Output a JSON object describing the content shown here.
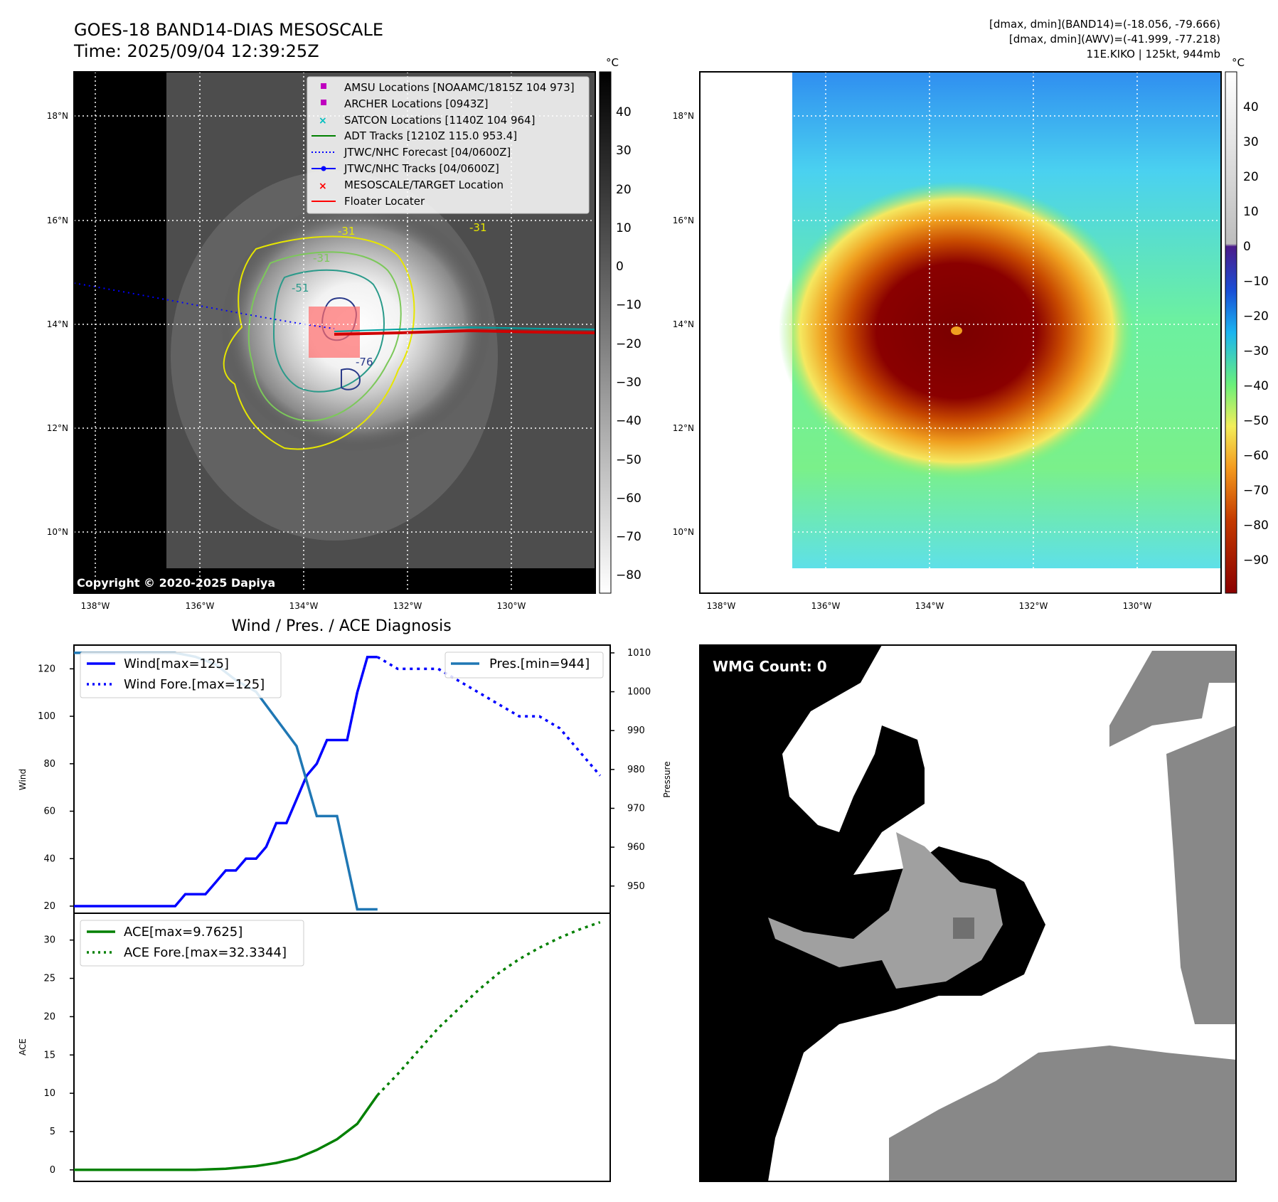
{
  "header": {
    "title_line1": "GOES-18 BAND14-DIAS MESOSCALE",
    "title_line2": "Time: 2025/09/04 12:39:25Z",
    "right_line1": "[dmax, dmin](BAND14)=(-18.056, -79.666)",
    "right_line2": "[dmax, dmin](AWV)=(-41.999, -77.218)",
    "right_line3": "11E.KIKO | 125kt, 944mb"
  },
  "maps": {
    "lat_labels": [
      "18°N",
      "16°N",
      "14°N",
      "12°N",
      "10°N"
    ],
    "lon_labels": [
      "138°W",
      "136°W",
      "134°W",
      "132°W",
      "130°W"
    ],
    "copyright": "Copyright © 2020-2025 Dapiya",
    "unit": "°C",
    "left_colorbar_ticks": [
      "40",
      "30",
      "20",
      "10",
      "0",
      "−10",
      "−20",
      "−30",
      "−40",
      "−50",
      "−60",
      "−70",
      "−80"
    ],
    "right_colorbar_ticks": [
      "40",
      "30",
      "20",
      "10",
      "0",
      "−10",
      "−20",
      "−30",
      "−40",
      "−50",
      "−60",
      "−70",
      "−80",
      "−90"
    ],
    "contour_labels": [
      "-31",
      "-31",
      "-51",
      "-76",
      "-31"
    ],
    "legend": [
      {
        "label": "AMSU Locations [NOAAMC/1815Z 104 973]",
        "color": "#bf00bf",
        "marker": "square"
      },
      {
        "label": "ARCHER Locations [0943Z]",
        "color": "#bf00bf",
        "marker": "square"
      },
      {
        "label": "SATCON Locations [1140Z 104 964]",
        "color": "#00bfbf",
        "marker": "x"
      },
      {
        "label": "ADT Tracks [1210Z 115.0 953.4]",
        "color": "#008000",
        "marker": "line"
      },
      {
        "label": "JTWC/NHC Forecast [04/0600Z]",
        "color": "#0000ff",
        "marker": "dotted"
      },
      {
        "label": "JTWC/NHC Tracks [04/0600Z]",
        "color": "#0000ff",
        "marker": "line-dot"
      },
      {
        "label": "MESOSCALE/TARGET Location",
        "color": "#ff0000",
        "marker": "x"
      },
      {
        "label": "Floater Locater",
        "color": "#ff0000",
        "marker": "line"
      }
    ]
  },
  "wmg": {
    "label": "WMG Count: 0"
  },
  "chart_data": [
    {
      "type": "line",
      "title": "Wind / Pres. / ACE Diagnosis",
      "ylabel": "Wind",
      "y2label": "Pressure",
      "ylim": [
        17,
        130
      ],
      "y2lim": [
        943,
        1012
      ],
      "yticks": [
        20,
        40,
        60,
        80,
        100,
        120
      ],
      "y2ticks": [
        950,
        960,
        970,
        980,
        990,
        1000,
        1010
      ],
      "legend_left": [
        "Wind[max=125]",
        "Wind Fore.[max=125]"
      ],
      "legend_right": [
        "Pres.[min=944]"
      ],
      "series": [
        {
          "name": "Wind[max=125]",
          "axis": "left",
          "color": "#0000ff",
          "style": "solid",
          "x": [
            0,
            1,
            2,
            3,
            4,
            5,
            6,
            7,
            8,
            9,
            10,
            11,
            12,
            13,
            14,
            15,
            16,
            17,
            18,
            19,
            20,
            21,
            22,
            23,
            24,
            25,
            26,
            27,
            28,
            29,
            30
          ],
          "values": [
            20,
            20,
            20,
            20,
            20,
            20,
            20,
            20,
            20,
            20,
            20,
            25,
            25,
            25,
            30,
            35,
            35,
            40,
            40,
            45,
            55,
            55,
            65,
            75,
            80,
            90,
            90,
            90,
            110,
            125,
            125
          ]
        },
        {
          "name": "Wind Fore.[max=125]",
          "axis": "left",
          "color": "#0000ff",
          "style": "dotted",
          "x": [
            30,
            32,
            34,
            36,
            38,
            40,
            42,
            44,
            46,
            48,
            50,
            52
          ],
          "values": [
            125,
            120,
            120,
            120,
            115,
            110,
            105,
            100,
            100,
            95,
            85,
            75
          ]
        },
        {
          "name": "Pres.[min=944]",
          "axis": "right",
          "color": "#1f77b4",
          "style": "solid",
          "x": [
            0,
            2,
            4,
            6,
            8,
            10,
            12,
            14,
            16,
            18,
            20,
            22,
            24,
            26,
            28,
            30
          ],
          "values": [
            1010,
            1010,
            1010,
            1010,
            1010,
            1010,
            1009,
            1007,
            1003,
            1000,
            993,
            986,
            968,
            968,
            944,
            944
          ]
        }
      ]
    },
    {
      "type": "line",
      "ylabel": "ACE",
      "ylim": [
        -1.5,
        33.5
      ],
      "yticks": [
        0,
        5,
        10,
        15,
        20,
        25,
        30
      ],
      "legend": [
        "ACE[max=9.7625]",
        "ACE Fore.[max=32.3344]"
      ],
      "series": [
        {
          "name": "ACE[max=9.7625]",
          "color": "#008000",
          "style": "solid",
          "x": [
            0,
            3,
            6,
            9,
            12,
            15,
            18,
            20,
            22,
            24,
            26,
            28,
            30
          ],
          "values": [
            0,
            0,
            0,
            0,
            0,
            0.15,
            0.5,
            0.9,
            1.5,
            2.6,
            4.0,
            6.0,
            9.7625
          ]
        },
        {
          "name": "ACE Fore.[max=32.3344]",
          "color": "#008000",
          "style": "dotted",
          "x": [
            30,
            32,
            34,
            36,
            38,
            40,
            42,
            44,
            46,
            48,
            50,
            52
          ],
          "values": [
            9.7625,
            12.5,
            15.5,
            18.5,
            21.0,
            23.5,
            25.7,
            27.5,
            29.0,
            30.3,
            31.4,
            32.3344
          ]
        }
      ]
    }
  ]
}
